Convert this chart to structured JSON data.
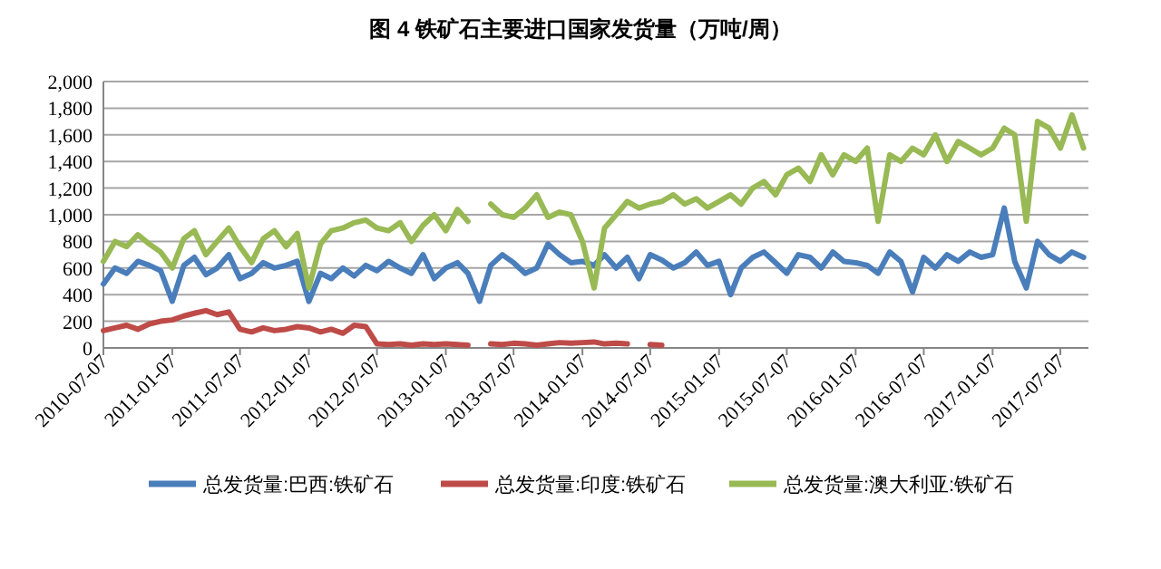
{
  "chart_data": {
    "type": "line",
    "title": "图 4  铁矿石主要进口国家发货量（万吨/周）",
    "x": [
      "2010-07-07",
      "2010-08-07",
      "2010-09-07",
      "2010-10-07",
      "2010-11-07",
      "2010-12-07",
      "2011-01-07",
      "2011-02-07",
      "2011-03-07",
      "2011-04-07",
      "2011-05-07",
      "2011-06-07",
      "2011-07-07",
      "2011-08-07",
      "2011-09-07",
      "2011-10-07",
      "2011-11-07",
      "2011-12-07",
      "2012-01-07",
      "2012-02-07",
      "2012-03-07",
      "2012-04-07",
      "2012-05-07",
      "2012-06-07",
      "2012-07-07",
      "2012-08-07",
      "2012-09-07",
      "2012-10-07",
      "2012-11-07",
      "2012-12-07",
      "2013-01-07",
      "2013-02-07",
      "2013-03-07",
      "2013-04-07",
      "2013-05-07",
      "2013-06-07",
      "2013-07-07",
      "2013-08-07",
      "2013-09-07",
      "2013-10-07",
      "2013-11-07",
      "2013-12-07",
      "2014-01-07",
      "2014-02-07",
      "2014-03-07",
      "2014-04-07",
      "2014-05-07",
      "2014-06-07",
      "2014-07-07",
      "2014-08-07",
      "2014-09-07",
      "2014-10-07",
      "2014-11-07",
      "2014-12-07",
      "2015-01-07",
      "2015-02-07",
      "2015-03-07",
      "2015-04-07",
      "2015-05-07",
      "2015-06-07",
      "2015-07-07",
      "2015-08-07",
      "2015-09-07",
      "2015-10-07",
      "2015-11-07",
      "2015-12-07",
      "2016-01-07",
      "2016-02-07",
      "2016-03-07",
      "2016-04-07",
      "2016-05-07",
      "2016-06-07",
      "2016-07-07",
      "2016-08-07",
      "2016-09-07",
      "2016-10-07",
      "2016-11-07",
      "2016-12-07",
      "2017-01-07",
      "2017-02-07",
      "2017-03-07",
      "2017-04-07",
      "2017-05-07",
      "2017-06-07",
      "2017-07-07",
      "2017-08-07",
      "2017-09-07"
    ],
    "series": [
      {
        "name": "总发货量:巴西:铁矿石",
        "color": "#4a7ebb",
        "values": [
          480,
          600,
          560,
          650,
          620,
          580,
          350,
          620,
          680,
          550,
          600,
          700,
          520,
          560,
          640,
          600,
          620,
          650,
          350,
          560,
          520,
          600,
          540,
          620,
          580,
          650,
          600,
          560,
          700,
          520,
          600,
          640,
          560,
          350,
          620,
          700,
          640,
          560,
          600,
          780,
          700,
          640,
          650,
          620,
          700,
          600,
          680,
          520,
          700,
          660,
          600,
          640,
          720,
          620,
          650,
          400,
          600,
          680,
          720,
          640,
          560,
          700,
          680,
          600,
          720,
          650,
          640,
          620,
          560,
          720,
          650,
          420,
          680,
          600,
          700,
          650,
          720,
          680,
          700,
          1050,
          650,
          450,
          800,
          700,
          650,
          720,
          680
        ]
      },
      {
        "name": "总发货量:印度:铁矿石",
        "color": "#be4b48",
        "values": [
          130,
          150,
          170,
          140,
          180,
          200,
          210,
          240,
          260,
          280,
          250,
          270,
          140,
          120,
          150,
          130,
          140,
          160,
          150,
          120,
          140,
          110,
          170,
          160,
          30,
          25,
          30,
          20,
          30,
          25,
          30,
          25,
          20,
          null,
          30,
          25,
          35,
          30,
          20,
          30,
          40,
          35,
          40,
          45,
          30,
          35,
          30,
          null,
          25,
          20,
          null,
          null,
          null,
          null,
          null,
          null,
          null,
          null,
          null,
          null,
          null,
          null,
          null,
          null,
          null,
          null,
          null,
          null,
          null,
          null,
          null,
          null,
          null,
          null,
          null,
          null,
          null,
          null,
          null,
          null,
          null,
          null,
          null,
          null,
          null,
          null,
          null
        ]
      },
      {
        "name": "总发货量:澳大利亚:铁矿石",
        "color": "#98b954",
        "values": [
          650,
          800,
          760,
          850,
          780,
          720,
          600,
          820,
          880,
          700,
          800,
          900,
          760,
          640,
          820,
          880,
          760,
          860,
          450,
          780,
          880,
          900,
          940,
          960,
          900,
          880,
          940,
          800,
          920,
          1000,
          880,
          1040,
          950,
          null,
          1080,
          1000,
          980,
          1050,
          1150,
          980,
          1020,
          1000,
          800,
          450,
          900,
          1000,
          1100,
          1050,
          1080,
          1100,
          1150,
          1080,
          1120,
          1050,
          1100,
          1150,
          1080,
          1200,
          1250,
          1150,
          1300,
          1350,
          1250,
          1450,
          1300,
          1450,
          1400,
          1500,
          950,
          1450,
          1400,
          1500,
          1450,
          1600,
          1400,
          1550,
          1500,
          1450,
          1500,
          1650,
          1600,
          950,
          1700,
          1650,
          1500,
          1750,
          1500
        ]
      }
    ],
    "xlim": [
      "2010-07-07",
      "2017-09-20"
    ],
    "xticks": [
      "2010-07-07",
      "2011-01-07",
      "2011-07-07",
      "2012-01-07",
      "2012-07-07",
      "2013-01-07",
      "2013-07-07",
      "2014-01-07",
      "2014-07-07",
      "2015-01-07",
      "2015-07-07",
      "2016-01-07",
      "2016-07-07",
      "2017-01-07",
      "2017-07-07"
    ],
    "ylim": [
      0,
      2000
    ],
    "yticks": [
      0,
      200,
      400,
      600,
      800,
      {
        "value": 1000,
        "label": "1,000"
      },
      {
        "value": 1200,
        "label": "1,200"
      },
      {
        "value": 1400,
        "label": "1,400"
      },
      {
        "value": 1600,
        "label": "1,600"
      },
      {
        "value": 1800,
        "label": "1,800"
      },
      {
        "value": 2000,
        "label": "2,000"
      }
    ],
    "grid": "y",
    "legend": "bottom",
    "marker": "none",
    "line_style": "solid"
  }
}
